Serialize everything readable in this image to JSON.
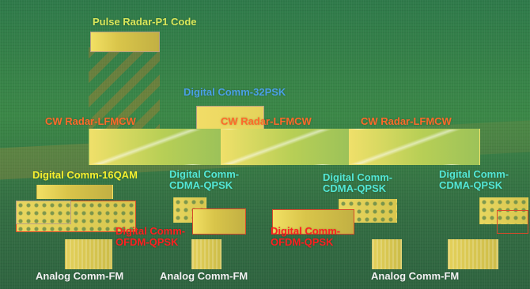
{
  "labels": {
    "pulse_radar": "Pulse Radar-P1 Code",
    "digital_32psk": "Digital Comm-32PSK",
    "cw_radar_1": "CW Radar-LFMCW",
    "cw_radar_2": "CW Radar-LFMCW",
    "cw_radar_3": "CW Radar-LFMCW",
    "digital_16qam": "Digital Comm-16QAM",
    "cdma_1": "Digital Comm-\nCDMA-QPSK",
    "cdma_2": "Digital Comm-\nCDMA-QPSK",
    "cdma_3": "Digital Comm-\nCDMA-QPSK",
    "ofdm_1": "Digital Comm-\nOFDM-QPSK",
    "ofdm_2": "Digital Comm-\nOFDM-QPSK",
    "fm_1": "Analog Comm-FM",
    "fm_2": "Analog Comm-FM",
    "fm_3": "Analog Comm-FM"
  },
  "colors": {
    "pulse": "#d9e65a",
    "digital_32psk": "#4aa0e6",
    "cw": "#ff6a2a",
    "qam": "#f5ef2f",
    "cdma": "#53e7d6",
    "ofdm": "#ff2020",
    "fm": "#f2f2f2"
  }
}
